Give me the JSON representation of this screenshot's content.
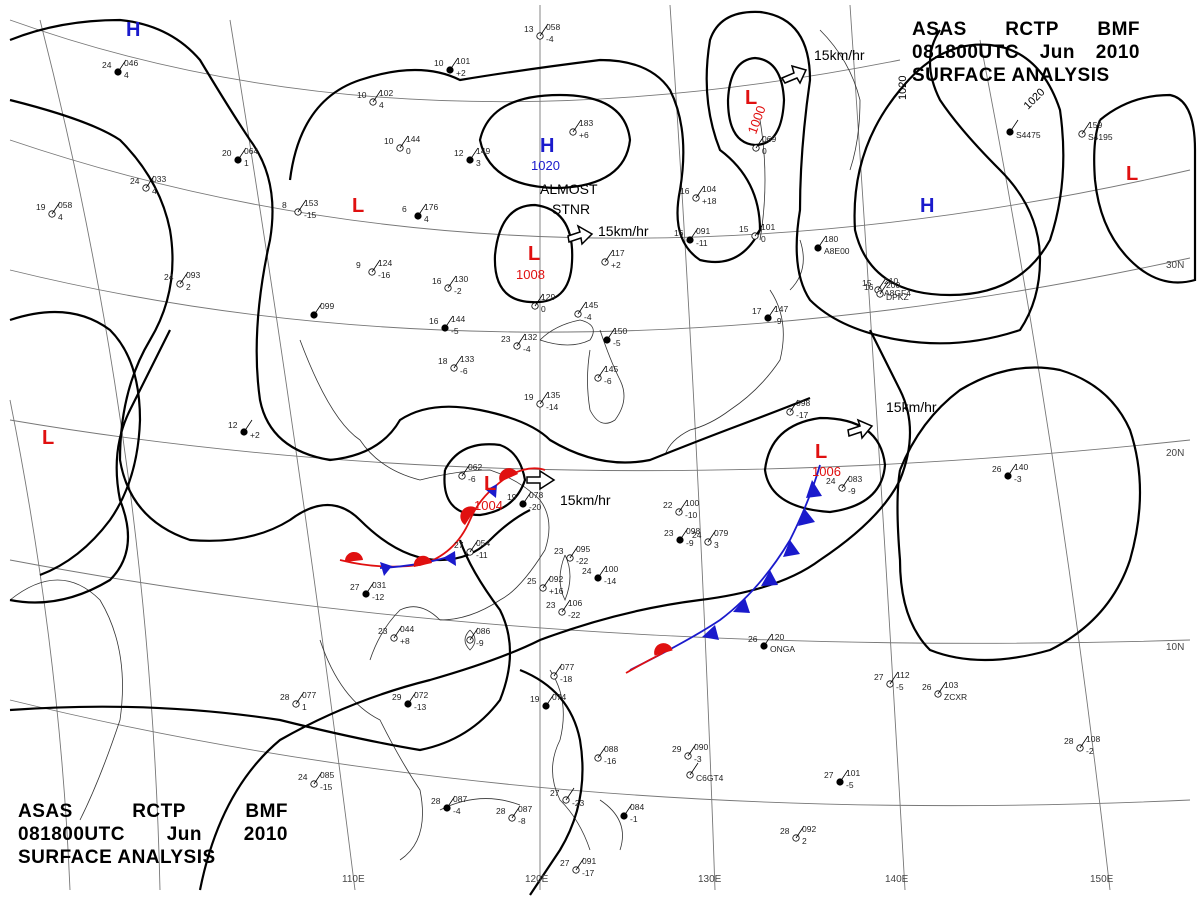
{
  "title": {
    "agency": "ASAS",
    "station": "RCTP",
    "code": "BMF",
    "datetime": "081800UTC",
    "month": "Jun",
    "year": "2010",
    "product": "SURFACE ANALYSIS"
  },
  "longitude_labels": [
    "110E",
    "120E",
    "130E",
    "140E",
    "150E"
  ],
  "latitude_labels": [
    "30N",
    "20N",
    "10N"
  ],
  "isobar_labels": [
    "1020",
    "1020"
  ],
  "pressure_centers": [
    {
      "id": "h-nw",
      "type": "H",
      "value": ""
    },
    {
      "id": "h-north",
      "type": "H",
      "value": "1020"
    },
    {
      "id": "h-east",
      "type": "H",
      "value": ""
    },
    {
      "id": "l-west",
      "type": "L",
      "value": ""
    },
    {
      "id": "l-mongolia",
      "type": "L",
      "value": ""
    },
    {
      "id": "l-north",
      "type": "L",
      "value": "1008"
    },
    {
      "id": "l-northeast",
      "type": "L",
      "value": "1000"
    },
    {
      "id": "l-far-east",
      "type": "L",
      "value": ""
    },
    {
      "id": "l-south-china",
      "type": "L",
      "value": "1004"
    },
    {
      "id": "l-pacific",
      "type": "L",
      "value": "1006"
    }
  ],
  "motion_labels": [
    "15km/hr",
    "15km/hr",
    "15km/hr",
    "15km/hr"
  ],
  "annotation": [
    "ALMOST",
    "STNR"
  ],
  "colors": {
    "high": "#1a1acc",
    "low": "#e01010",
    "isobar": "#000000",
    "grid": "#777777",
    "warm_front": "#e01010",
    "cold_front": "#1a1acc"
  },
  "stations": [
    {
      "t": "24",
      "p": "046",
      "w": "4"
    },
    {
      "t": "24",
      "p": "033",
      "w": "4"
    },
    {
      "t": "19",
      "p": "058",
      "w": "4"
    },
    {
      "t": "20",
      "p": "064",
      "w": "1"
    },
    {
      "t": "24",
      "p": "093",
      "w": "2"
    },
    {
      "t": "10",
      "p": "102",
      "w": "4"
    },
    {
      "t": "10",
      "p": "101",
      "w": "+2"
    },
    {
      "t": "13",
      "p": "058",
      "w": "-4"
    },
    {
      "t": "10",
      "p": "144",
      "w": "0"
    },
    {
      "t": "12",
      "p": "149",
      "w": "3"
    },
    {
      "t": "",
      "p": "183",
      "w": "+6"
    },
    {
      "t": "8",
      "p": "153",
      "w": "-15"
    },
    {
      "t": "6",
      "p": "176",
      "w": "4"
    },
    {
      "t": "9",
      "p": "124",
      "w": "-16"
    },
    {
      "t": "16",
      "p": "130",
      "w": "-2"
    },
    {
      "t": "16",
      "p": "144",
      "w": "-5"
    },
    {
      "t": "18",
      "p": "133",
      "w": "-6"
    },
    {
      "t": "23",
      "p": "132",
      "w": "-4"
    },
    {
      "t": "",
      "p": "099",
      "w": ""
    },
    {
      "t": "",
      "p": "129",
      "w": "0"
    },
    {
      "t": "",
      "p": "145",
      "w": "-4"
    },
    {
      "t": "",
      "p": "150",
      "w": "-5"
    },
    {
      "t": "",
      "p": "145",
      "w": "-6"
    },
    {
      "t": "19",
      "p": "135",
      "w": "-14"
    },
    {
      "t": "12",
      "p": "",
      "w": "+2"
    },
    {
      "t": "16",
      "p": "104",
      "w": "+18"
    },
    {
      "t": "",
      "p": "117",
      "w": "+2"
    },
    {
      "t": "16",
      "p": "091",
      "w": "-11"
    },
    {
      "t": "15",
      "p": "101",
      "w": "0"
    },
    {
      "t": "",
      "p": "069",
      "w": "0"
    },
    {
      "t": "",
      "p": "180",
      "w": "A8E00"
    },
    {
      "t": "15",
      "p": "210",
      "w": "A8GF4"
    },
    {
      "t": "16",
      "p": "200",
      "w": "DPKZ"
    },
    {
      "t": "17",
      "p": "147",
      "w": "-9"
    },
    {
      "t": "",
      "p": "098",
      "w": "-17"
    },
    {
      "t": "",
      "p": "062",
      "w": "-6"
    },
    {
      "t": "19",
      "p": "078",
      "w": "-20"
    },
    {
      "t": "27",
      "p": "054",
      "w": "-11"
    },
    {
      "t": "22",
      "p": "100",
      "w": "-10"
    },
    {
      "t": "23",
      "p": "098",
      "w": "-9"
    },
    {
      "t": "24",
      "p": "079",
      "w": "3"
    },
    {
      "t": "23",
      "p": "095",
      "w": "-22"
    },
    {
      "t": "24",
      "p": "100",
      "w": "-14"
    },
    {
      "t": "25",
      "p": "092",
      "w": "+16"
    },
    {
      "t": "23",
      "p": "106",
      "w": "-22"
    },
    {
      "t": "27",
      "p": "031",
      "w": "-12"
    },
    {
      "t": "23",
      "p": "044",
      "w": "+8"
    },
    {
      "t": "",
      "p": "086",
      "w": "-9"
    },
    {
      "t": "29",
      "p": "072",
      "w": "-13"
    },
    {
      "t": "28",
      "p": "077",
      "w": "1"
    },
    {
      "t": "",
      "p": "077",
      "w": "-18"
    },
    {
      "t": "19",
      "p": "074",
      "w": ""
    },
    {
      "t": "",
      "p": "088",
      "w": "-16"
    },
    {
      "t": "29",
      "p": "090",
      "w": "-3"
    },
    {
      "t": "26",
      "p": "120",
      "w": "ONGA"
    },
    {
      "t": "27",
      "p": "112",
      "w": "-5"
    },
    {
      "t": "26",
      "p": "103",
      "w": "ZCXR"
    },
    {
      "t": "26",
      "p": "140",
      "w": "-3"
    },
    {
      "t": "24",
      "p": "083",
      "w": "-9"
    },
    {
      "t": "24",
      "p": "085",
      "w": "-15"
    },
    {
      "t": "28",
      "p": "087",
      "w": "-4"
    },
    {
      "t": "28",
      "p": "087",
      "w": "-8"
    },
    {
      "t": "27",
      "p": "",
      "w": "-23"
    },
    {
      "t": "",
      "p": "084",
      "w": "-1"
    },
    {
      "t": "27",
      "p": "091",
      "w": "-17"
    },
    {
      "t": "28",
      "p": "092",
      "w": "2"
    },
    {
      "t": "27",
      "p": "101",
      "w": "-5"
    },
    {
      "t": "28",
      "p": "108",
      "w": "-2"
    },
    {
      "t": "",
      "p": "",
      "w": "C6GT4"
    },
    {
      "t": "",
      "p": "",
      "w": "S4475"
    },
    {
      "t": "",
      "p": "159",
      "w": "S4195"
    }
  ]
}
